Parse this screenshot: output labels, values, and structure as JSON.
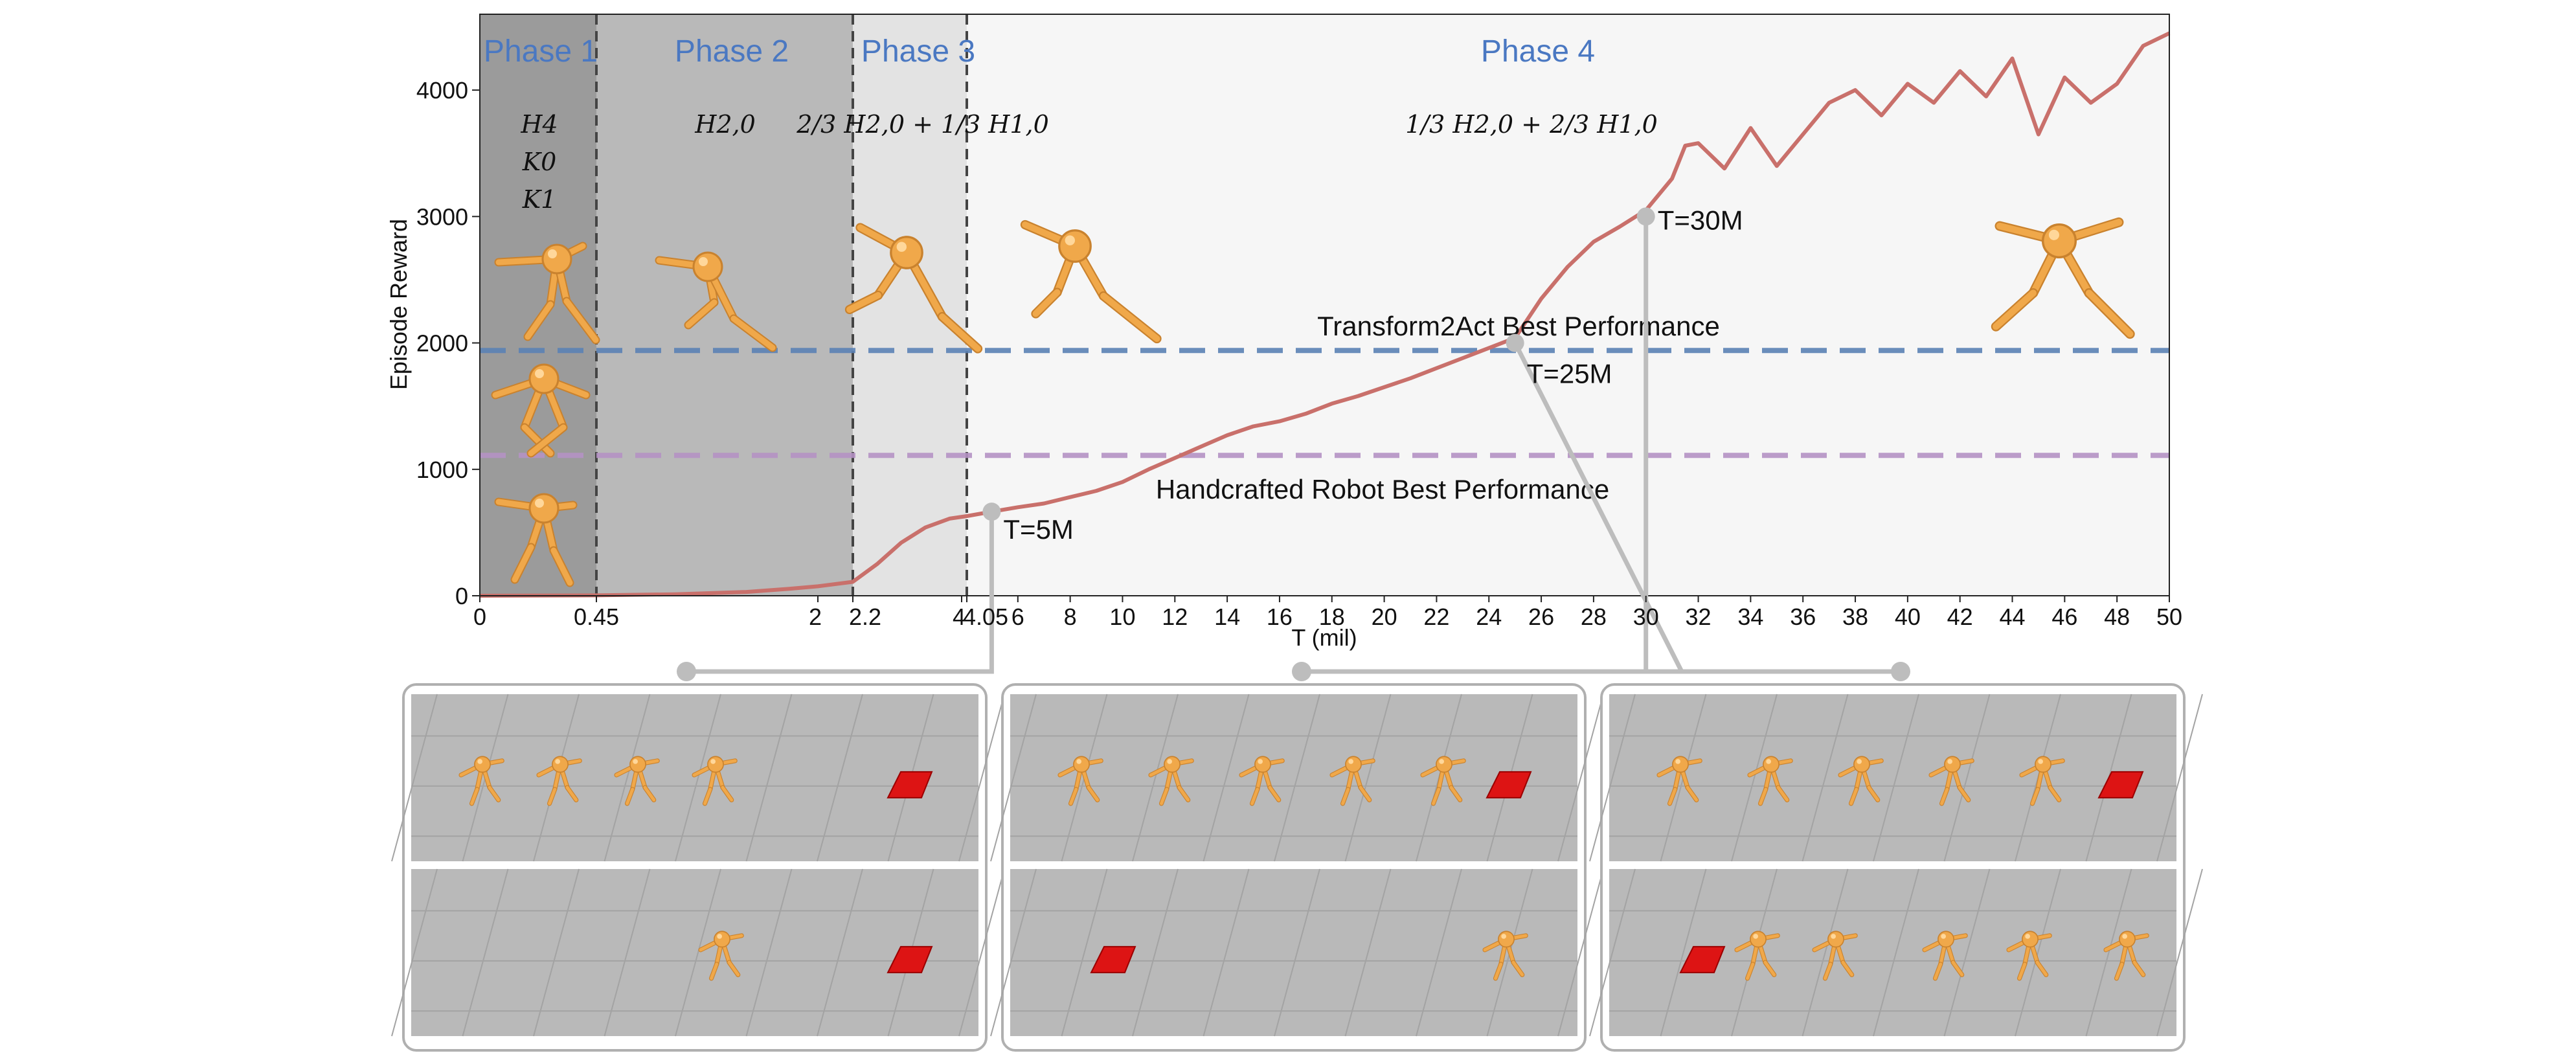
{
  "chart_data": {
    "type": "line",
    "title": "",
    "xlabel": "T (mil)",
    "ylabel": "Episode Reward",
    "ylim": [
      0,
      4600
    ],
    "yticks": [
      0,
      1000,
      2000,
      3000,
      4000
    ],
    "x_axis_note": "piecewise axis: phases 1-3 compressed, phase 4 linear from 4.05 to 50",
    "xticks": [
      {
        "v": 0,
        "label": "0"
      },
      {
        "v": 0.45,
        "label": "0.45"
      },
      {
        "v": 2,
        "label": "2"
      },
      {
        "v": 2.2,
        "label": "2.2"
      },
      {
        "v": 4,
        "label": "4"
      },
      {
        "v": 4.05,
        "label": "4.05"
      },
      {
        "v": 6,
        "label": "6"
      },
      {
        "v": 8,
        "label": "8"
      },
      {
        "v": 10,
        "label": "10"
      },
      {
        "v": 12,
        "label": "12"
      },
      {
        "v": 14,
        "label": "14"
      },
      {
        "v": 16,
        "label": "16"
      },
      {
        "v": 18,
        "label": "18"
      },
      {
        "v": 20,
        "label": "20"
      },
      {
        "v": 22,
        "label": "22"
      },
      {
        "v": 24,
        "label": "24"
      },
      {
        "v": 26,
        "label": "26"
      },
      {
        "v": 28,
        "label": "28"
      },
      {
        "v": 30,
        "label": "30"
      },
      {
        "v": 32,
        "label": "32"
      },
      {
        "v": 34,
        "label": "34"
      },
      {
        "v": 36,
        "label": "36"
      },
      {
        "v": 38,
        "label": "38"
      },
      {
        "v": 40,
        "label": "40"
      },
      {
        "v": 42,
        "label": "42"
      },
      {
        "v": 44,
        "label": "44"
      },
      {
        "v": 46,
        "label": "46"
      },
      {
        "v": 48,
        "label": "48"
      },
      {
        "v": 50,
        "label": "50"
      }
    ],
    "phases": [
      {
        "label": "Phase 1",
        "start": 0,
        "end": 0.45,
        "shade": "#9b9b9b",
        "formula": [
          "H4",
          "K0",
          "K1"
        ]
      },
      {
        "label": "Phase 2",
        "start": 0.45,
        "end": 2.2,
        "shade": "#b9b9b9",
        "formula": [
          "H2,0"
        ]
      },
      {
        "label": "Phase 3",
        "start": 2.2,
        "end": 4.05,
        "shade": "#e3e3e3",
        "formula": [
          "2/3 H2,0 + 1/3 H1,0"
        ]
      },
      {
        "label": "Phase 4",
        "start": 4.05,
        "end": 50,
        "shade": "#f6f6f6",
        "formula": [
          "1/3 H2,0 + 2/3 H1,0"
        ]
      }
    ],
    "reference_lines": [
      {
        "name": "Transform2Act Best Performance",
        "y": 1940,
        "color": "#5b82b5"
      },
      {
        "name": "Handcrafted Robot Best Performance",
        "y": 1110,
        "color": "#b592c4"
      }
    ],
    "series": [
      {
        "color": "#c9706b",
        "points": [
          [
            0,
            0
          ],
          [
            0.45,
            3
          ],
          [
            1.0,
            12
          ],
          [
            1.5,
            30
          ],
          [
            1.8,
            55
          ],
          [
            2.0,
            75
          ],
          [
            2.2,
            110
          ],
          [
            2.6,
            250
          ],
          [
            3.0,
            420
          ],
          [
            3.4,
            540
          ],
          [
            3.8,
            610
          ],
          [
            4.05,
            630
          ],
          [
            5,
            665
          ],
          [
            6,
            700
          ],
          [
            7,
            730
          ],
          [
            8,
            780
          ],
          [
            9,
            830
          ],
          [
            10,
            900
          ],
          [
            11,
            1000
          ],
          [
            12,
            1090
          ],
          [
            13,
            1180
          ],
          [
            14,
            1270
          ],
          [
            15,
            1340
          ],
          [
            16,
            1380
          ],
          [
            17,
            1440
          ],
          [
            18,
            1520
          ],
          [
            19,
            1580
          ],
          [
            20,
            1650
          ],
          [
            21,
            1720
          ],
          [
            22,
            1800
          ],
          [
            23,
            1880
          ],
          [
            24,
            1960
          ],
          [
            25,
            2040
          ],
          [
            26,
            2350
          ],
          [
            27,
            2600
          ],
          [
            28,
            2800
          ],
          [
            29,
            2920
          ],
          [
            30,
            3050
          ],
          [
            31,
            3300
          ],
          [
            31.5,
            3560
          ],
          [
            32,
            3580
          ],
          [
            33,
            3380
          ],
          [
            34,
            3700
          ],
          [
            35,
            3400
          ],
          [
            36,
            3650
          ],
          [
            37,
            3900
          ],
          [
            38,
            4000
          ],
          [
            39,
            3800
          ],
          [
            40,
            4050
          ],
          [
            41,
            3900
          ],
          [
            42,
            4150
          ],
          [
            43,
            3950
          ],
          [
            44,
            4250
          ],
          [
            45,
            3650
          ],
          [
            46,
            4100
          ],
          [
            47,
            3900
          ],
          [
            48,
            4050
          ],
          [
            49,
            4350
          ],
          [
            50,
            4450
          ]
        ]
      }
    ],
    "annotations": [
      {
        "label": "T=5M",
        "x": 5,
        "y": 665
      },
      {
        "label": "T=25M",
        "x": 25,
        "y": 2000
      },
      {
        "label": "T=30M",
        "x": 30,
        "y": 3000
      }
    ],
    "grid": false,
    "legend": "none"
  },
  "colors": {
    "robot_body": "#f0a84a",
    "floor": "#b9b9b9",
    "goal": "#dd1414",
    "connector": "#bdbdbd"
  },
  "icons": [
    "robot-figure",
    "goal-marker"
  ]
}
